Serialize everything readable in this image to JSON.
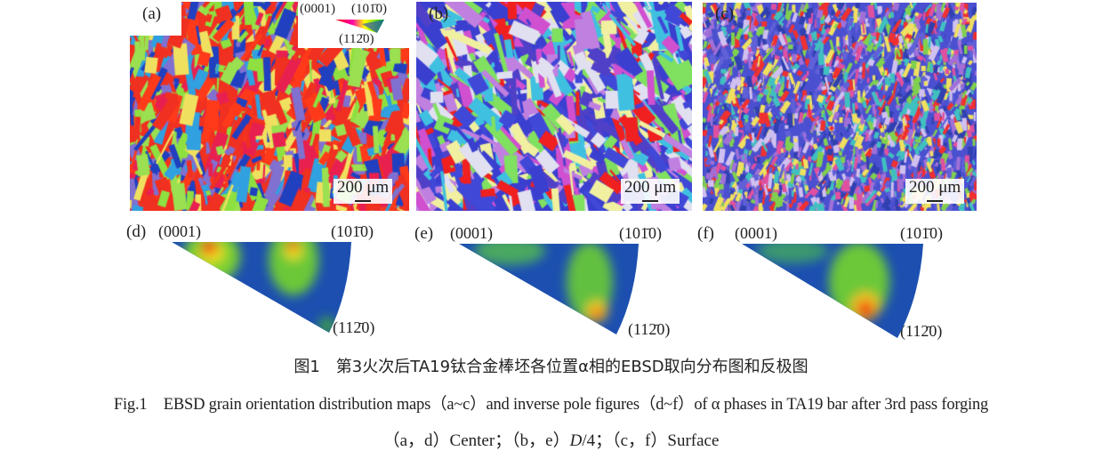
{
  "maps": [
    {
      "label": "(a)",
      "scale": "200 μm",
      "palette": [
        "#f03020",
        "#f03020",
        "#ff3a1a",
        "#8ee040",
        "#9ae050",
        "#2040c0",
        "#e82050",
        "#f0e060",
        "#8070d0",
        "#30a0e0"
      ]
    },
    {
      "label": "(b)",
      "scale": "200 μm",
      "palette": [
        "#3a3fd0",
        "#4048d8",
        "#5040c8",
        "#f02020",
        "#c080e0",
        "#e0e0f0",
        "#80e060",
        "#d050d0",
        "#f0f0a0",
        "#40c0e0"
      ]
    },
    {
      "label": "(c)",
      "scale": "200 μm",
      "palette": [
        "#4a50d0",
        "#6060d8",
        "#a070d8",
        "#f03030",
        "#80d050",
        "#f0e060",
        "#40c0c0",
        "#d0c0f0",
        "#e050a0",
        "#3040b0"
      ]
    }
  ],
  "legend": {
    "c0001": "(0001)",
    "c1010": "(101̄0)",
    "c1120": "(112̄0)"
  },
  "ipfs": [
    {
      "label": "(d)",
      "corner_0001": "(0001)",
      "corner_1010": "(101̄0)",
      "corner_1120": "(112̄0)",
      "peaks": "two: near (0001) and mid-top edge"
    },
    {
      "label": "(e)",
      "corner_0001": "(0001)",
      "corner_1010": "(101̄0)",
      "corner_1120": "(112̄0)",
      "peaks": "near (11-20)"
    },
    {
      "label": "(f)",
      "corner_0001": "(0001)",
      "corner_1010": "(101̄0)",
      "corner_1120": "(112̄0)",
      "peaks": "near (11-20)"
    }
  ],
  "caption": {
    "zh": "图1　第3火次后TA19钛合金棒坯各位置α相的EBSD取向分布图和反极图",
    "en": "Fig.1　EBSD grain orientation distribution maps（a~c）and inverse pole figures（d~f）of α phases in TA19 bar after 3rd pass forging",
    "line3_a": "（a，d）Center；（b，e）",
    "line3_italic": "D",
    "line3_b": "/4；（c，f）Surface"
  }
}
